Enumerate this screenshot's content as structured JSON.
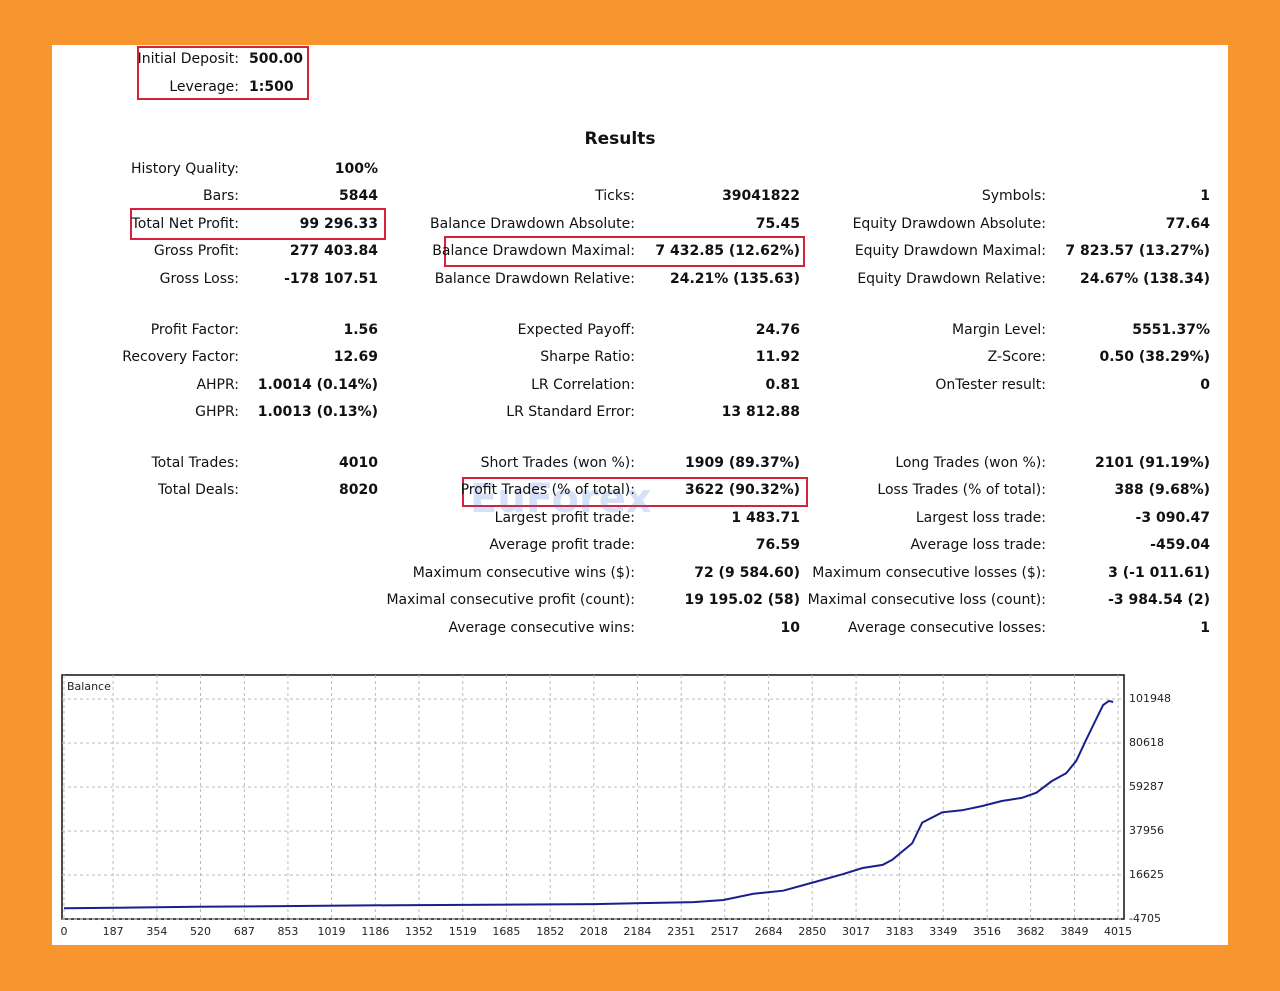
{
  "deposit": [
    [
      "Initial Deposit:",
      "500.00"
    ],
    [
      "Leverage:",
      "1:500"
    ]
  ],
  "title": "Results",
  "columns": [
    [
      [
        "History Quality:",
        "100%"
      ],
      [
        "Bars:",
        "5844"
      ],
      [
        "Total Net Profit:",
        "99 296.33"
      ],
      [
        "Gross Profit:",
        "277 403.84"
      ],
      [
        "Gross Loss:",
        "-178 107.51"
      ],
      [
        "Profit Factor:",
        "1.56"
      ],
      [
        "Recovery Factor:",
        "12.69"
      ],
      [
        "AHPR:",
        "1.0014 (0.14%)"
      ],
      [
        "GHPR:",
        "1.0013 (0.13%)"
      ],
      [
        "Total Trades:",
        "4010"
      ],
      [
        "Total Deals:",
        "8020"
      ],
      null,
      null,
      null,
      null,
      null
    ],
    [
      null,
      [
        "Ticks:",
        "39041822"
      ],
      [
        "Balance Drawdown Absolute:",
        "75.45"
      ],
      [
        "Balance Drawdown Maximal:",
        "7 432.85 (12.62%)"
      ],
      [
        "Balance Drawdown Relative:",
        "24.21% (135.63)"
      ],
      [
        "Expected Payoff:",
        "24.76"
      ],
      [
        "Sharpe Ratio:",
        "11.92"
      ],
      [
        "LR Correlation:",
        "0.81"
      ],
      [
        "LR Standard Error:",
        "13 812.88"
      ],
      [
        "Short Trades (won %):",
        "1909 (89.37%)"
      ],
      [
        "Profit Trades (% of total):",
        "3622 (90.32%)"
      ],
      [
        "Largest profit trade:",
        "1 483.71"
      ],
      [
        "Average profit trade:",
        "76.59"
      ],
      [
        "Maximum consecutive wins ($):",
        "72 (9 584.60)"
      ],
      [
        "Maximal consecutive profit (count):",
        "19 195.02 (58)"
      ],
      [
        "Average consecutive wins:",
        "10"
      ]
    ],
    [
      null,
      [
        "Symbols:",
        "1"
      ],
      [
        "Equity Drawdown Absolute:",
        "77.64"
      ],
      [
        "Equity Drawdown Maximal:",
        "7 823.57 (13.27%)"
      ],
      [
        "Equity Drawdown Relative:",
        "24.67% (138.34)"
      ],
      [
        "Margin Level:",
        "5551.37%"
      ],
      [
        "Z-Score:",
        "0.50 (38.29%)"
      ],
      [
        "OnTester result:",
        "0"
      ],
      null,
      [
        "Long Trades (won %):",
        "2101 (91.19%)"
      ],
      [
        "Loss Trades (% of total):",
        "388 (9.68%)"
      ],
      [
        "Largest loss trade:",
        "-3 090.47"
      ],
      [
        "Average loss trade:",
        "-459.04"
      ],
      [
        "Maximum consecutive losses ($):",
        "3 (-1 011.61)"
      ],
      [
        "Maximal consecutive loss (count):",
        "-3 984.54 (2)"
      ],
      [
        "Average consecutive losses:",
        "1"
      ]
    ]
  ],
  "watermark": "EuForex",
  "chart_data": {
    "type": "line",
    "title": "Balance",
    "color": "#1a1f8c",
    "grid": true,
    "x": [
      0,
      507,
      1264,
      2020,
      2399,
      2512,
      2626,
      2739,
      2853,
      2966,
      3042,
      3118,
      3155,
      3231,
      3269,
      3345,
      3420,
      3496,
      3572,
      3648,
      3704,
      3761,
      3818,
      3856,
      3893,
      3931,
      3958,
      3980,
      3996
    ],
    "values": [
      500,
      1200,
      2000,
      2500,
      3500,
      4500,
      7500,
      9000,
      13000,
      17000,
      20000,
      21500,
      24000,
      32000,
      42000,
      47000,
      48000,
      50000,
      52500,
      54000,
      56500,
      62000,
      66000,
      72000,
      82000,
      92000,
      99000,
      101000,
      100500
    ],
    "xlim": [
      0,
      4030
    ],
    "xticks": [
      0,
      187,
      354,
      520,
      687,
      853,
      1019,
      1186,
      1352,
      1519,
      1685,
      1852,
      2018,
      2184,
      2351,
      2517,
      2684,
      2850,
      3017,
      3183,
      3349,
      3516,
      3682,
      3849,
      4015
    ],
    "ylim": [
      -4705,
      112600
    ],
    "yticks": [
      -4705,
      16625,
      37956,
      59287,
      80618,
      101948
    ]
  }
}
